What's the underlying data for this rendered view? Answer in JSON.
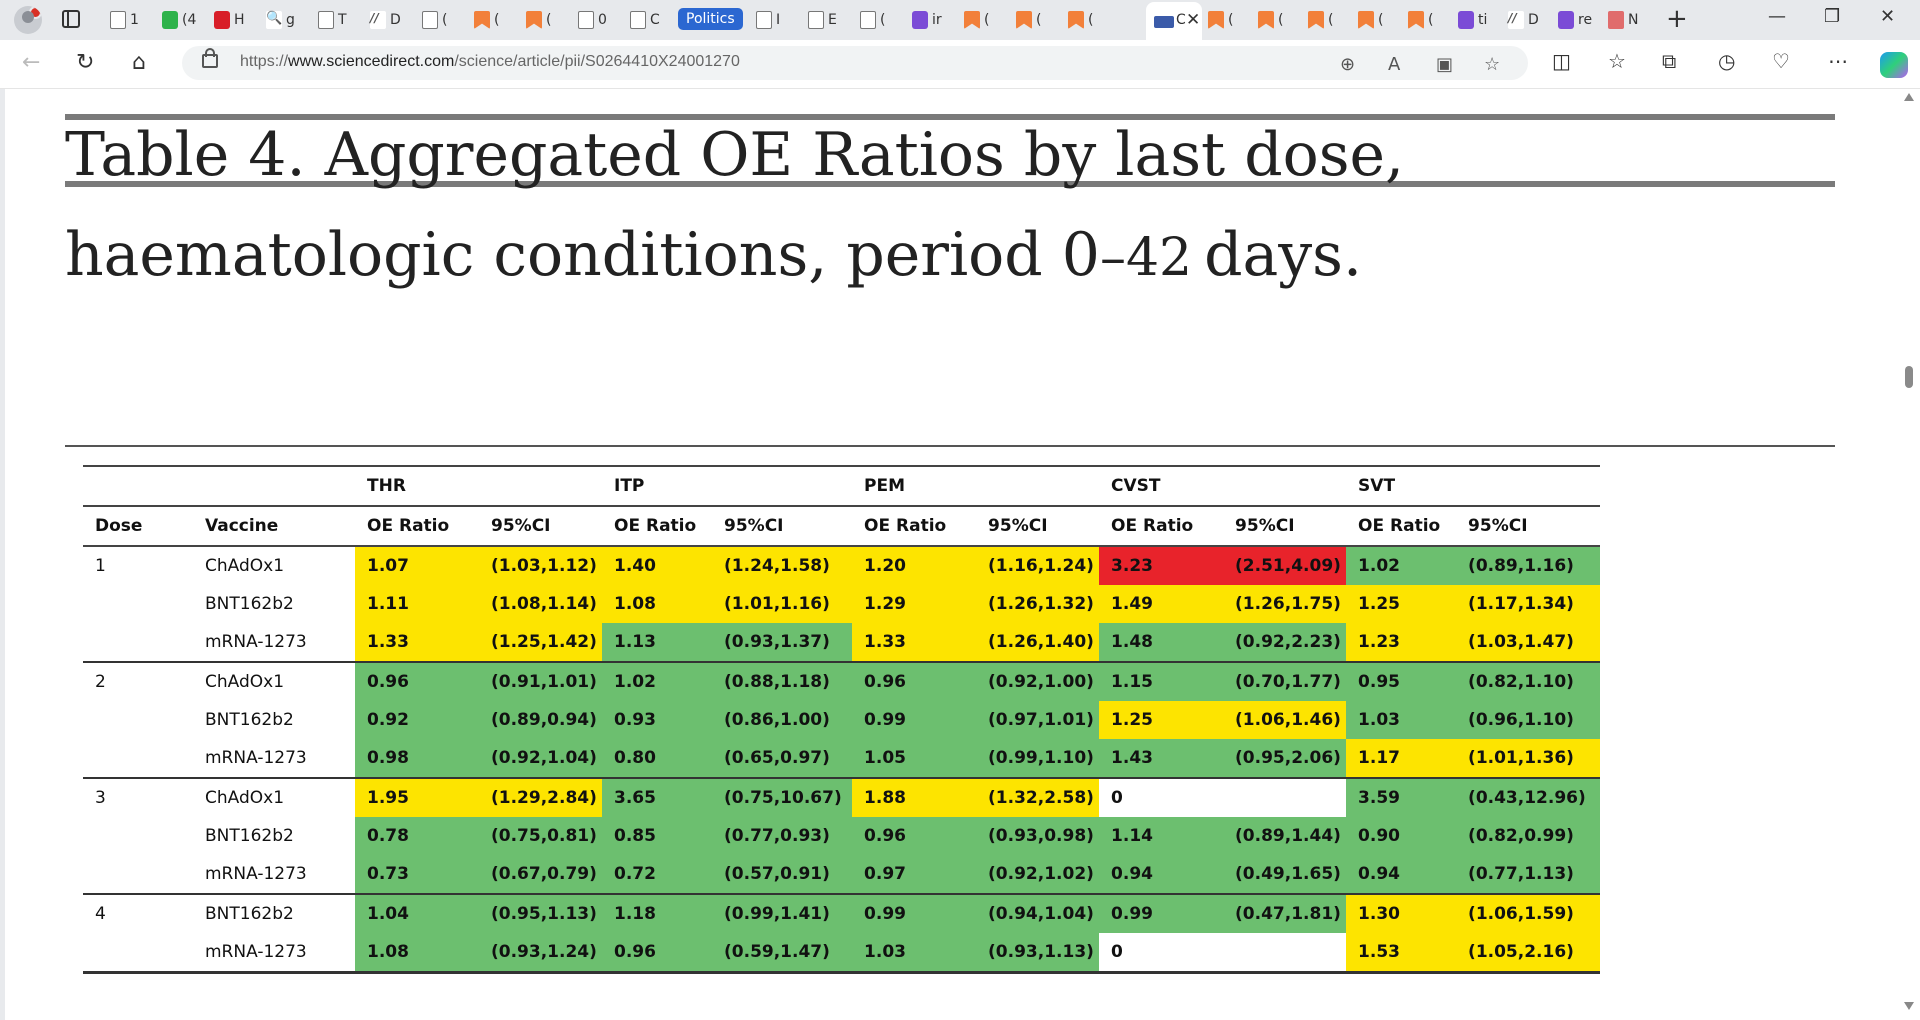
{
  "browser": {
    "tabs": [
      {
        "icon": "page-icon",
        "label": "1"
      },
      {
        "icon": "grammarly-icon",
        "label": "(4"
      },
      {
        "icon": "red-app-icon",
        "label": "H"
      },
      {
        "icon": "search-icon",
        "label": "g"
      },
      {
        "icon": "page-icon",
        "label": "T"
      },
      {
        "icon": "ar-icon",
        "label": "D"
      },
      {
        "icon": "page-icon",
        "label": "("
      },
      {
        "icon": "bookmark-icon",
        "label": "("
      },
      {
        "icon": "bookmark-icon",
        "label": "("
      },
      {
        "icon": "page-icon",
        "label": "0"
      },
      {
        "icon": "page-icon",
        "label": "C"
      }
    ],
    "tabs_right": [
      {
        "icon": "page-icon",
        "label": "I"
      },
      {
        "icon": "page-icon",
        "label": "E"
      },
      {
        "icon": "page-icon",
        "label": "("
      },
      {
        "icon": "yahoo-icon",
        "label": "ir"
      },
      {
        "icon": "bookmark-icon",
        "label": "("
      },
      {
        "icon": "bookmark-icon",
        "label": "("
      },
      {
        "icon": "bookmark-icon",
        "label": "("
      }
    ],
    "tabs_after": [
      {
        "icon": "bookmark-icon",
        "label": "("
      },
      {
        "icon": "bookmark-icon",
        "label": "("
      },
      {
        "icon": "bookmark-icon",
        "label": "("
      },
      {
        "icon": "bookmark-icon",
        "label": "("
      },
      {
        "icon": "bookmark-icon",
        "label": "("
      },
      {
        "icon": "yahoo-icon",
        "label": "ti"
      },
      {
        "icon": "ar-icon",
        "label": "D"
      },
      {
        "icon": "yahoo-icon",
        "label": "re"
      },
      {
        "icon": "r-icon",
        "label": "N"
      }
    ],
    "tab_group_label": "Politics",
    "active_tab_label": "C",
    "url_prefix": "https://",
    "url_domain": "www.sciencedirect.com",
    "url_path": "/science/article/pii/S0264410X24001270"
  },
  "article": {
    "table_title_prefix": "Table 4. Aggregated OE Ratios by last dose, haematologic conditions, period 0",
    "table_title_dash": "–",
    "table_title_num": "42",
    "table_title_suffix": "days."
  },
  "colors": {
    "green": "#6cbf6f",
    "yellow": "#fde400",
    "red": "#e8232b",
    "white": "#ffffff"
  },
  "table": {
    "groups": [
      "THR",
      "ITP",
      "PEM",
      "CVST",
      "SVT"
    ],
    "sub_headers": [
      "Dose",
      "Vaccine",
      "OE Ratio",
      "95%CI",
      "OE Ratio",
      "95%CI",
      "OE Ratio",
      "95%CI",
      "OE Ratio",
      "95%CI",
      "OE Ratio",
      "95%CI"
    ],
    "rows": [
      {
        "dose": "1",
        "vaccine": "ChAdOx1",
        "vals": [
          [
            "1.07",
            "(1.03,1.12)",
            "y"
          ],
          [
            "1.40",
            "(1.24,1.58)",
            "y"
          ],
          [
            "1.20",
            "(1.16,1.24)",
            "y"
          ],
          [
            "3.23",
            "(2.51,4.09)",
            "r"
          ],
          [
            "1.02",
            "(0.89,1.16)",
            "g"
          ]
        ]
      },
      {
        "dose": "",
        "vaccine": "BNT162b2",
        "vals": [
          [
            "1.11",
            "(1.08,1.14)",
            "y"
          ],
          [
            "1.08",
            "(1.01,1.16)",
            "y"
          ],
          [
            "1.29",
            "(1.26,1.32)",
            "y"
          ],
          [
            "1.49",
            "(1.26,1.75)",
            "y"
          ],
          [
            "1.25",
            "(1.17,1.34)",
            "y"
          ]
        ]
      },
      {
        "dose": "",
        "vaccine": "mRNA-1273",
        "vals": [
          [
            "1.33",
            "(1.25,1.42)",
            "y"
          ],
          [
            "1.13",
            "(0.93,1.37)",
            "g"
          ],
          [
            "1.33",
            "(1.26,1.40)",
            "y"
          ],
          [
            "1.48",
            "(0.92,2.23)",
            "g"
          ],
          [
            "1.23",
            "(1.03,1.47)",
            "y"
          ]
        ]
      },
      {
        "dose": "2",
        "vaccine": "ChAdOx1",
        "vals": [
          [
            "0.96",
            "(0.91,1.01)",
            "g"
          ],
          [
            "1.02",
            "(0.88,1.18)",
            "g"
          ],
          [
            "0.96",
            "(0.92,1.00)",
            "g"
          ],
          [
            "1.15",
            "(0.70,1.77)",
            "g"
          ],
          [
            "0.95",
            "(0.82,1.10)",
            "g"
          ]
        ]
      },
      {
        "dose": "",
        "vaccine": "BNT162b2",
        "vals": [
          [
            "0.92",
            "(0.89,0.94)",
            "g"
          ],
          [
            "0.93",
            "(0.86,1.00)",
            "g"
          ],
          [
            "0.99",
            "(0.97,1.01)",
            "g"
          ],
          [
            "1.25",
            "(1.06,1.46)",
            "y"
          ],
          [
            "1.03",
            "(0.96,1.10)",
            "g"
          ]
        ]
      },
      {
        "dose": "",
        "vaccine": "mRNA-1273",
        "vals": [
          [
            "0.98",
            "(0.92,1.04)",
            "g"
          ],
          [
            "0.80",
            "(0.65,0.97)",
            "g"
          ],
          [
            "1.05",
            "(0.99,1.10)",
            "g"
          ],
          [
            "1.43",
            "(0.95,2.06)",
            "g"
          ],
          [
            "1.17",
            "(1.01,1.36)",
            "y"
          ]
        ]
      },
      {
        "dose": "3",
        "vaccine": "ChAdOx1",
        "vals": [
          [
            "1.95",
            "(1.29,2.84)",
            "y"
          ],
          [
            "3.65",
            "(0.75,10.67)",
            "g"
          ],
          [
            "1.88",
            "(1.32,2.58)",
            "y"
          ],
          [
            "0",
            "",
            "w"
          ],
          [
            "3.59",
            "(0.43,12.96)",
            "g"
          ]
        ]
      },
      {
        "dose": "",
        "vaccine": "BNT162b2",
        "vals": [
          [
            "0.78",
            "(0.75,0.81)",
            "g"
          ],
          [
            "0.85",
            "(0.77,0.93)",
            "g"
          ],
          [
            "0.96",
            "(0.93,0.98)",
            "g"
          ],
          [
            "1.14",
            "(0.89,1.44)",
            "g"
          ],
          [
            "0.90",
            "(0.82,0.99)",
            "g"
          ]
        ]
      },
      {
        "dose": "",
        "vaccine": "mRNA-1273",
        "vals": [
          [
            "0.73",
            "(0.67,0.79)",
            "g"
          ],
          [
            "0.72",
            "(0.57,0.91)",
            "g"
          ],
          [
            "0.97",
            "(0.92,1.02)",
            "g"
          ],
          [
            "0.94",
            "(0.49,1.65)",
            "g"
          ],
          [
            "0.94",
            "(0.77,1.13)",
            "g"
          ]
        ]
      },
      {
        "dose": "4",
        "vaccine": "BNT162b2",
        "vals": [
          [
            "1.04",
            "(0.95,1.13)",
            "g"
          ],
          [
            "1.18",
            "(0.99,1.41)",
            "g"
          ],
          [
            "0.99",
            "(0.94,1.04)",
            "g"
          ],
          [
            "0.99",
            "(0.47,1.81)",
            "g"
          ],
          [
            "1.30",
            "(1.06,1.59)",
            "y"
          ]
        ]
      },
      {
        "dose": "",
        "vaccine": "mRNA-1273",
        "vals": [
          [
            "1.08",
            "(0.93,1.24)",
            "g"
          ],
          [
            "0.96",
            "(0.59,1.47)",
            "g"
          ],
          [
            "1.03",
            "(0.93,1.13)",
            "g"
          ],
          [
            "0",
            "",
            "w"
          ],
          [
            "1.53",
            "(1.05,2.16)",
            "y"
          ]
        ]
      }
    ]
  }
}
